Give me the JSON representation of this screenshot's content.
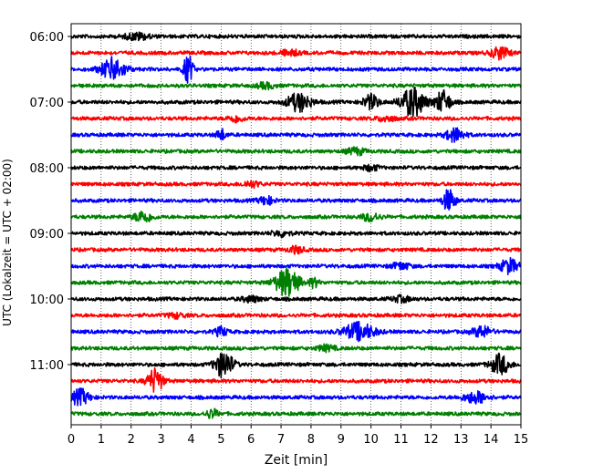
{
  "chart_data": {
    "type": "line",
    "title": "",
    "xlabel": "Zeit  [min]",
    "ylabel": "UTC (Lokalzeit = UTC + 02:00)",
    "xlim": [
      0,
      15
    ],
    "x_ticks": [
      "0",
      "1",
      "2",
      "3",
      "4",
      "5",
      "6",
      "7",
      "8",
      "9",
      "10",
      "11",
      "12",
      "13",
      "14",
      "15"
    ],
    "y_tick_labels": [
      "06:00",
      "07:00",
      "08:00",
      "09:00",
      "10:00",
      "11:00"
    ],
    "grid": "vertical dotted",
    "legend": "none",
    "trace_colors": [
      "#000000",
      "#ff0000",
      "#0000ff",
      "#008000"
    ],
    "traces": [
      {
        "start": "06:00",
        "events": [
          {
            "t": 2.2,
            "amp": 0.6,
            "dur": 0.8
          }
        ]
      },
      {
        "start": "06:15",
        "events": [
          {
            "t": 7.3,
            "amp": 0.5,
            "dur": 0.6
          },
          {
            "t": 14.3,
            "amp": 1.1,
            "dur": 0.6
          }
        ]
      },
      {
        "start": "06:30",
        "events": [
          {
            "t": 1.4,
            "amp": 2.0,
            "dur": 0.8
          },
          {
            "t": 3.9,
            "amp": 2.6,
            "dur": 0.3
          }
        ]
      },
      {
        "start": "06:45",
        "events": [
          {
            "t": 6.5,
            "amp": 0.5,
            "dur": 0.6
          }
        ]
      },
      {
        "start": "07:00",
        "events": [
          {
            "t": 7.6,
            "amp": 1.6,
            "dur": 0.8
          },
          {
            "t": 10.0,
            "amp": 1.3,
            "dur": 0.5
          },
          {
            "t": 11.4,
            "amp": 2.6,
            "dur": 0.8
          },
          {
            "t": 12.4,
            "amp": 2.0,
            "dur": 0.5
          }
        ]
      },
      {
        "start": "07:15",
        "events": [
          {
            "t": 5.5,
            "amp": 0.6,
            "dur": 0.5
          },
          {
            "t": 10.5,
            "amp": 0.5,
            "dur": 0.6
          }
        ]
      },
      {
        "start": "07:30",
        "events": [
          {
            "t": 5.0,
            "amp": 1.0,
            "dur": 0.3
          },
          {
            "t": 12.8,
            "amp": 1.2,
            "dur": 0.6
          }
        ]
      },
      {
        "start": "07:45",
        "events": [
          {
            "t": 9.5,
            "amp": 0.6,
            "dur": 0.6
          }
        ]
      },
      {
        "start": "08:00",
        "events": [
          {
            "t": 10.0,
            "amp": 0.5,
            "dur": 0.5
          }
        ]
      },
      {
        "start": "08:15",
        "events": [
          {
            "t": 6.0,
            "amp": 0.5,
            "dur": 0.6
          }
        ]
      },
      {
        "start": "08:30",
        "events": [
          {
            "t": 6.5,
            "amp": 0.7,
            "dur": 0.5
          },
          {
            "t": 12.6,
            "amp": 2.0,
            "dur": 0.4
          }
        ]
      },
      {
        "start": "08:45",
        "events": [
          {
            "t": 2.4,
            "amp": 1.0,
            "dur": 0.6
          },
          {
            "t": 10.0,
            "amp": 0.7,
            "dur": 0.6
          }
        ]
      },
      {
        "start": "09:00",
        "events": [
          {
            "t": 7.0,
            "amp": 0.5,
            "dur": 0.6
          }
        ]
      },
      {
        "start": "09:15",
        "events": [
          {
            "t": 7.5,
            "amp": 0.6,
            "dur": 0.5
          }
        ]
      },
      {
        "start": "09:30",
        "events": [
          {
            "t": 11.0,
            "amp": 0.6,
            "dur": 0.6
          },
          {
            "t": 14.6,
            "amp": 1.3,
            "dur": 0.6
          }
        ]
      },
      {
        "start": "09:45",
        "events": [
          {
            "t": 7.2,
            "amp": 2.5,
            "dur": 0.8
          },
          {
            "t": 8.1,
            "amp": 0.8,
            "dur": 0.3
          }
        ]
      },
      {
        "start": "10:00",
        "events": [
          {
            "t": 6.0,
            "amp": 0.5,
            "dur": 0.6
          },
          {
            "t": 11.0,
            "amp": 0.5,
            "dur": 0.6
          }
        ]
      },
      {
        "start": "10:15",
        "events": [
          {
            "t": 3.5,
            "amp": 0.4,
            "dur": 0.6
          }
        ]
      },
      {
        "start": "10:30",
        "events": [
          {
            "t": 5.0,
            "amp": 0.8,
            "dur": 0.4
          },
          {
            "t": 9.6,
            "amp": 1.6,
            "dur": 1.0
          },
          {
            "t": 13.7,
            "amp": 1.0,
            "dur": 0.6
          }
        ]
      },
      {
        "start": "10:45",
        "events": [
          {
            "t": 8.5,
            "amp": 0.5,
            "dur": 0.6
          }
        ]
      },
      {
        "start": "11:00",
        "events": [
          {
            "t": 5.1,
            "amp": 2.4,
            "dur": 0.6
          },
          {
            "t": 14.3,
            "amp": 1.8,
            "dur": 0.6
          }
        ]
      },
      {
        "start": "11:15",
        "events": [
          {
            "t": 2.8,
            "amp": 2.2,
            "dur": 0.5
          }
        ]
      },
      {
        "start": "11:30",
        "events": [
          {
            "t": 0.3,
            "amp": 1.4,
            "dur": 0.6
          },
          {
            "t": 13.5,
            "amp": 1.0,
            "dur": 0.8
          }
        ]
      },
      {
        "start": "11:45",
        "events": [
          {
            "t": 4.7,
            "amp": 0.8,
            "dur": 0.4
          }
        ]
      }
    ]
  }
}
